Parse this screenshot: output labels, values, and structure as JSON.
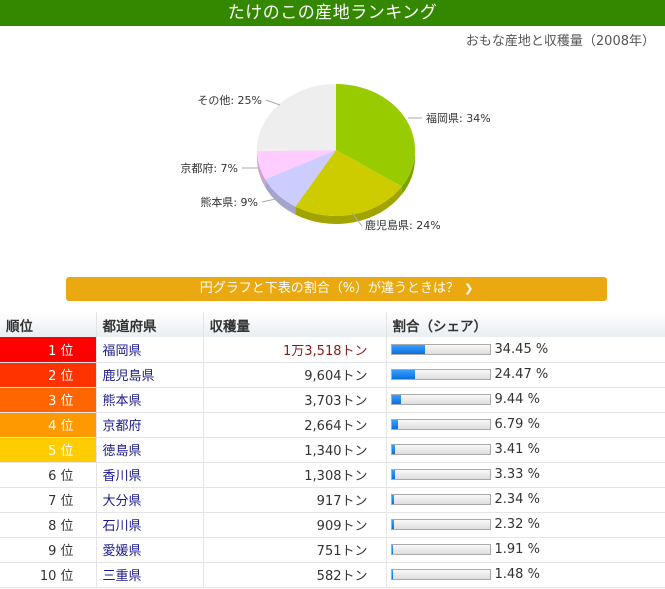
{
  "header": {
    "title": "たけのこの産地ランキング",
    "subtitle": "おもな産地と収穫量（2008年）"
  },
  "info_button": {
    "label": "円グラフと下表の割合（%）が違うときは？",
    "icon": "chevron-down-icon"
  },
  "table": {
    "headers": [
      "順位",
      "都道府県",
      "収穫量",
      "割合（シェア）"
    ],
    "rows": [
      {
        "rank": "1 位",
        "pref": "福岡県",
        "amount": "1万3,518トン",
        "share": "34.45 %",
        "pct": 34.45,
        "rank_color": "#ff0000"
      },
      {
        "rank": "2 位",
        "pref": "鹿児島県",
        "amount": "9,604トン",
        "share": "24.47 %",
        "pct": 24.47,
        "rank_color": "#ff3300"
      },
      {
        "rank": "3 位",
        "pref": "熊本県",
        "amount": "3,703トン",
        "share": "9.44 %",
        "pct": 9.44,
        "rank_color": "#ff6600"
      },
      {
        "rank": "4 位",
        "pref": "京都府",
        "amount": "2,664トン",
        "share": "6.79 %",
        "pct": 6.79,
        "rank_color": "#ff9900"
      },
      {
        "rank": "5 位",
        "pref": "徳島県",
        "amount": "1,340トン",
        "share": "3.41 %",
        "pct": 3.41,
        "rank_color": "#ffcc00"
      },
      {
        "rank": "6 位",
        "pref": "香川県",
        "amount": "1,308トン",
        "share": "3.33 %",
        "pct": 3.33,
        "rank_color": ""
      },
      {
        "rank": "7 位",
        "pref": "大分県",
        "amount": "917トン",
        "share": "2.34 %",
        "pct": 2.34,
        "rank_color": ""
      },
      {
        "rank": "8 位",
        "pref": "石川県",
        "amount": "909トン",
        "share": "2.32 %",
        "pct": 2.32,
        "rank_color": ""
      },
      {
        "rank": "9 位",
        "pref": "愛媛県",
        "amount": "751トン",
        "share": "1.91 %",
        "pct": 1.91,
        "rank_color": ""
      },
      {
        "rank": "10 位",
        "pref": "三重県",
        "amount": "582トン",
        "share": "1.48 %",
        "pct": 1.48,
        "rank_color": ""
      }
    ]
  },
  "chart_data": {
    "type": "pie",
    "title": "おもな産地と収穫量（2008年）",
    "categories": [
      "福岡県",
      "鹿児島県",
      "熊本県",
      "京都府",
      "その他"
    ],
    "values": [
      34,
      24,
      9,
      7,
      25
    ],
    "labels": [
      "福岡県: 34%",
      "鹿児島県: 24%",
      "熊本県: 9%",
      "京都府: 7%",
      "その他: 25%"
    ],
    "colors": [
      "#99cc00",
      "#cccc00",
      "#ccccff",
      "#ffccff",
      "#eeeeee"
    ],
    "legend": "none (inline labels)"
  }
}
